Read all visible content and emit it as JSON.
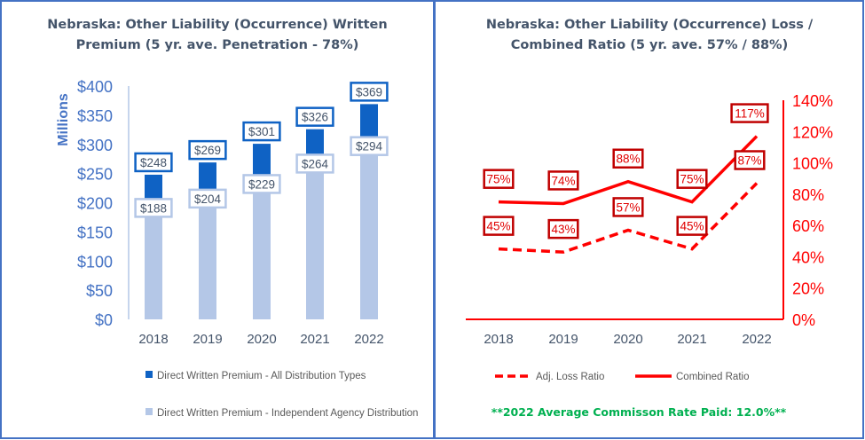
{
  "chart_data": [
    {
      "type": "bar",
      "title_lines": [
        "Nebraska: Other Liability (Occurrence) Written",
        "Premium (5 yr. ave. Penetration - 78%)"
      ],
      "ylabel": "Millions",
      "ylim": [
        0,
        400
      ],
      "yticks": [
        "$0",
        "$50",
        "$100",
        "$150",
        "$200",
        "$250",
        "$300",
        "$350",
        "$400"
      ],
      "categories": [
        "2018",
        "2019",
        "2020",
        "2021",
        "2022"
      ],
      "series": [
        {
          "name": "Direct Written Premium - All Distribution Types",
          "values": [
            248,
            269,
            301,
            326,
            369
          ],
          "labels": [
            "$248",
            "$269",
            "$301",
            "$326",
            "$369"
          ],
          "color": "#0f62c4"
        },
        {
          "name": "Direct Written Premium - Independent Agency Distribution",
          "values": [
            188,
            204,
            229,
            264,
            294
          ],
          "labels": [
            "$188",
            "$204",
            "$229",
            "$264",
            "$294"
          ],
          "color": "#b4c7e7"
        }
      ],
      "legend": "bottom",
      "grid": false
    },
    {
      "type": "line",
      "title_lines": [
        "Nebraska: Other Liability (Occurrence) Loss /",
        "Combined  Ratio (5 yr. ave.  57% / 88%)"
      ],
      "ylim": [
        0,
        140
      ],
      "yticks": [
        "0%",
        "20%",
        "40%",
        "60%",
        "80%",
        "100%",
        "120%",
        "140%"
      ],
      "y_axis_side": "right",
      "categories": [
        "2018",
        "2019",
        "2020",
        "2021",
        "2022"
      ],
      "series": [
        {
          "name": "Adj. Loss Ratio",
          "values": [
            45,
            43,
            57,
            45,
            87
          ],
          "labels": [
            "45%",
            "43%",
            "57%",
            "45%",
            "87%"
          ],
          "style": "dashed",
          "color": "#ff0000"
        },
        {
          "name": "Combined Ratio",
          "values": [
            75,
            74,
            88,
            75,
            117
          ],
          "labels": [
            "75%",
            "74%",
            "88%",
            "75%",
            "117%"
          ],
          "style": "solid",
          "color": "#ff0000"
        }
      ],
      "legend": "bottom",
      "grid": false,
      "note": "**2022 Average Commisson  Rate Paid: 12.0%**"
    }
  ]
}
